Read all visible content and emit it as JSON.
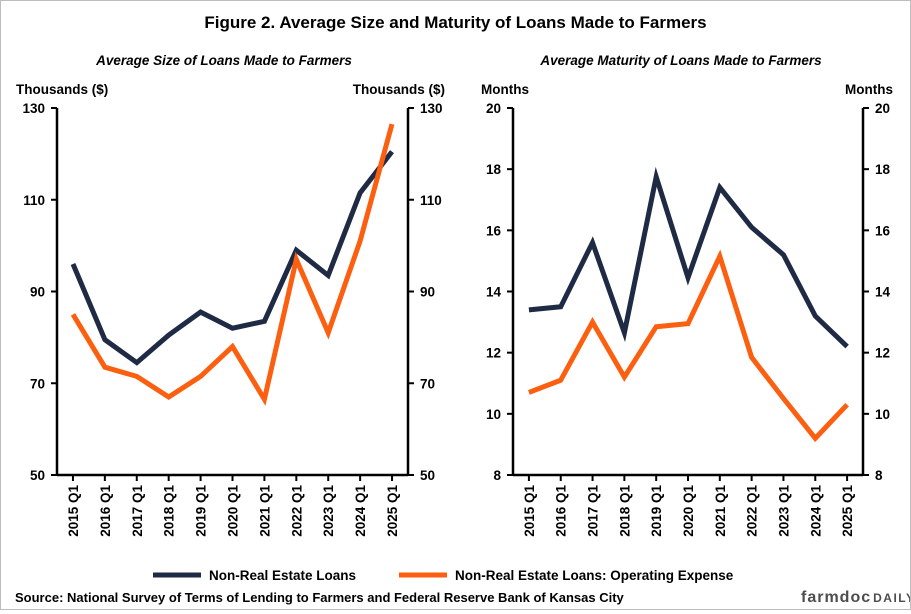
{
  "figure_title": "Figure 2. Average Size and Maturity of Loans Made to Farmers",
  "source": "Source: National Survey of Terms of Lending to Farmers and Federal Reserve Bank of Kansas City",
  "brand": {
    "part1": "farmdoc",
    "part2": "DAILY"
  },
  "colors": {
    "navy": "#1f2a44",
    "orange": "#fc5f0f"
  },
  "legend": [
    {
      "label": "Non-Real Estate Loans",
      "color": "#1f2a44"
    },
    {
      "label": "Non-Real Estate Loans: Operating Expense",
      "color": "#fc5f0f"
    }
  ],
  "chart_data": [
    {
      "type": "line",
      "title": "Average Size of Loans Made to Farmers",
      "ylabel_left": "Thousands ($)",
      "ylabel_right": "Thousands ($)",
      "ylim": [
        50,
        130
      ],
      "yticks": [
        50,
        70,
        90,
        110,
        130
      ],
      "categories": [
        "2015 Q1",
        "2016 Q1",
        "2017 Q1",
        "2018 Q1",
        "2019 Q1",
        "2020 Q1",
        "2021 Q1",
        "2022 Q1",
        "2023 Q1",
        "2024 Q1",
        "2025 Q1"
      ],
      "series": [
        {
          "name": "Non-Real Estate Loans",
          "color": "#1f2a44",
          "values": [
            96,
            79.5,
            74.5,
            80.5,
            85.5,
            82,
            83.5,
            99,
            93.5,
            111.5,
            120.5
          ]
        },
        {
          "name": "Non-Real Estate Loans: Operating Expense",
          "color": "#fc5f0f",
          "values": [
            85,
            73.5,
            71.5,
            67,
            71.5,
            78,
            66.5,
            97,
            81,
            101,
            126.5
          ]
        }
      ],
      "grid": false
    },
    {
      "type": "line",
      "title": "Average Maturity of Loans Made to Farmers",
      "ylabel_left": "Months",
      "ylabel_right": "Months",
      "ylim": [
        8,
        20
      ],
      "yticks": [
        8,
        10,
        12,
        14,
        16,
        18,
        20
      ],
      "categories": [
        "2015 Q1",
        "2016 Q1",
        "2017 Q1",
        "2018 Q1",
        "2019 Q1",
        "2020 Q1",
        "2021 Q1",
        "2022 Q1",
        "2023 Q1",
        "2024 Q1",
        "2025 Q1"
      ],
      "series": [
        {
          "name": "Non-Real Estate Loans",
          "color": "#1f2a44",
          "values": [
            13.4,
            13.5,
            15.6,
            12.65,
            17.75,
            14.45,
            17.4,
            16.1,
            15.2,
            13.2,
            12.2
          ]
        },
        {
          "name": "Non-Real Estate Loans: Operating Expense",
          "color": "#fc5f0f",
          "values": [
            10.7,
            11.1,
            13.0,
            11.2,
            12.85,
            12.95,
            15.15,
            11.85,
            10.5,
            9.2,
            10.3
          ]
        }
      ],
      "grid": false
    }
  ]
}
